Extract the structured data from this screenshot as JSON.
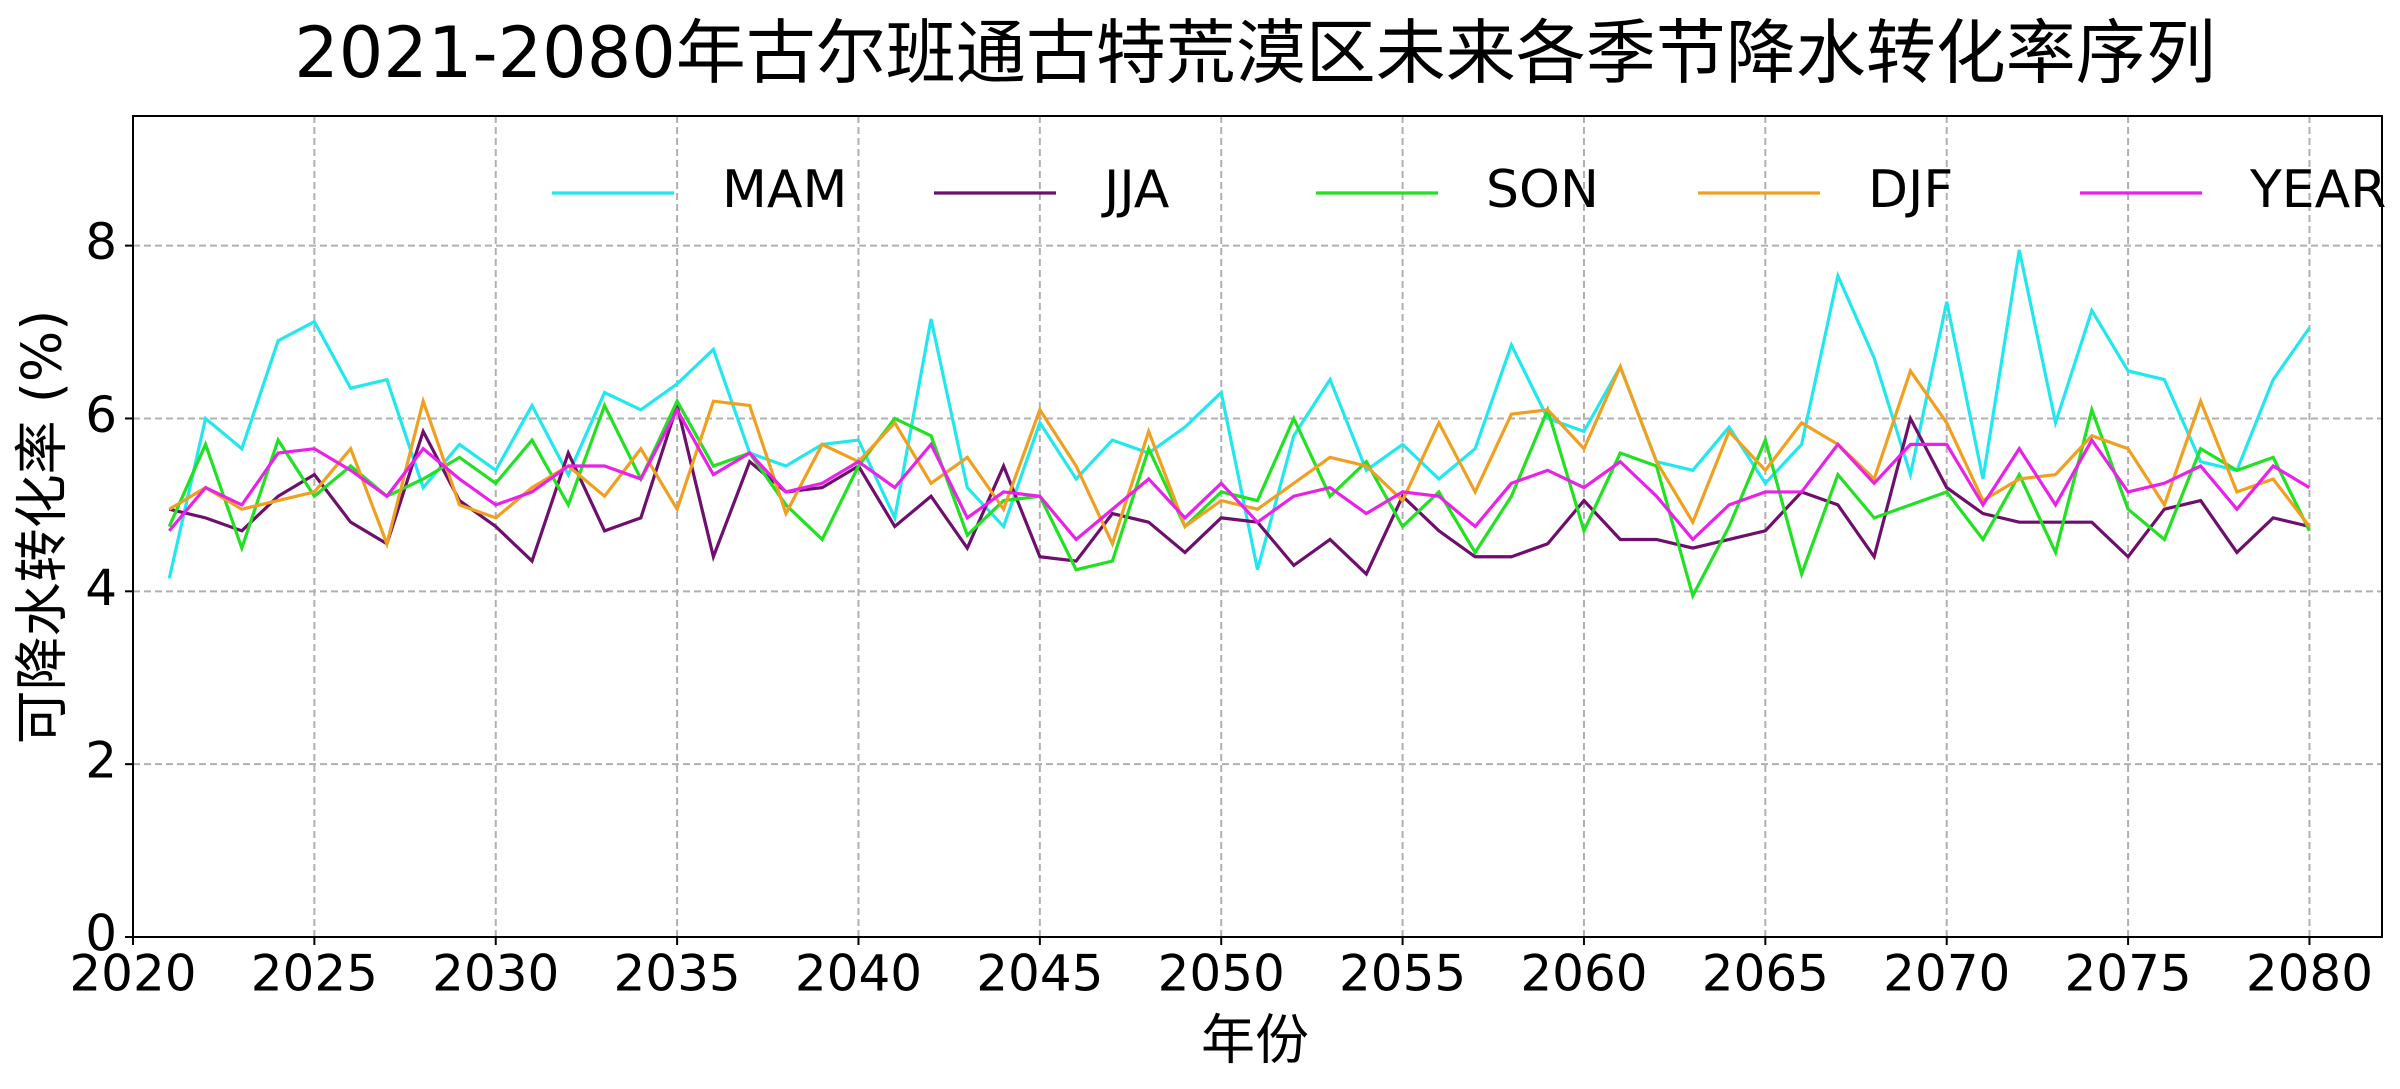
{
  "chart_data": {
    "type": "line",
    "title": "2021-2080年古尔班通古特荒漠区未来各季节降水转化率序列",
    "x_label": "年份",
    "y_label": "可降水转化率 (%)",
    "x": [
      2021,
      2022,
      2023,
      2024,
      2025,
      2026,
      2027,
      2028,
      2029,
      2030,
      2031,
      2032,
      2033,
      2034,
      2035,
      2036,
      2037,
      2038,
      2039,
      2040,
      2041,
      2042,
      2043,
      2044,
      2045,
      2046,
      2047,
      2048,
      2049,
      2050,
      2051,
      2052,
      2053,
      2054,
      2055,
      2056,
      2057,
      2058,
      2059,
      2060,
      2061,
      2062,
      2063,
      2064,
      2065,
      2066,
      2067,
      2068,
      2069,
      2070,
      2071,
      2072,
      2073,
      2074,
      2075,
      2076,
      2077,
      2078,
      2079,
      2080
    ],
    "series": [
      {
        "name": "MAM",
        "color": "#22e8ee",
        "values": [
          4.15,
          6.0,
          5.65,
          6.9,
          7.12,
          6.35,
          6.45,
          5.2,
          5.7,
          5.4,
          6.15,
          5.35,
          6.3,
          6.1,
          6.4,
          6.8,
          5.6,
          5.45,
          5.7,
          5.75,
          4.85,
          7.15,
          5.2,
          4.75,
          5.95,
          5.3,
          5.75,
          5.6,
          5.9,
          6.3,
          4.25,
          5.8,
          6.45,
          5.4,
          5.7,
          5.3,
          5.65,
          6.85,
          6.0,
          5.85,
          6.6,
          5.5,
          5.4,
          5.9,
          5.25,
          5.7,
          7.65,
          6.7,
          5.35,
          7.35,
          5.3,
          7.95,
          5.95,
          7.25,
          6.55,
          6.45,
          5.5,
          5.4,
          6.45,
          7.05
        ]
      },
      {
        "name": "JJA",
        "color": "#6e0f6e",
        "values": [
          4.95,
          4.85,
          4.7,
          5.1,
          5.35,
          4.8,
          4.55,
          5.85,
          5.05,
          4.75,
          4.35,
          5.6,
          4.7,
          4.85,
          6.15,
          4.4,
          5.5,
          5.15,
          5.2,
          5.45,
          4.75,
          5.1,
          4.5,
          5.45,
          4.4,
          4.35,
          4.9,
          4.8,
          4.45,
          4.85,
          4.8,
          4.3,
          4.6,
          4.2,
          5.1,
          4.7,
          4.4,
          4.4,
          4.55,
          5.05,
          4.6,
          4.6,
          4.5,
          4.6,
          4.7,
          5.15,
          5.0,
          4.4,
          6.0,
          5.2,
          4.9,
          4.8,
          4.8,
          4.8,
          4.4,
          4.95,
          5.05,
          4.45,
          4.85,
          4.75
        ]
      },
      {
        "name": "SON",
        "color": "#22e022",
        "values": [
          4.75,
          5.7,
          4.5,
          5.75,
          5.1,
          5.45,
          5.1,
          5.3,
          5.55,
          5.25,
          5.75,
          5.0,
          6.15,
          5.3,
          6.2,
          5.45,
          5.6,
          5.0,
          4.6,
          5.45,
          6.0,
          5.8,
          4.65,
          5.05,
          5.1,
          4.25,
          4.35,
          5.65,
          4.75,
          5.15,
          5.05,
          6.0,
          5.1,
          5.5,
          4.75,
          5.15,
          4.45,
          5.1,
          6.1,
          4.7,
          5.6,
          5.45,
          3.95,
          4.75,
          5.75,
          4.2,
          5.35,
          4.85,
          5.0,
          5.15,
          4.6,
          5.35,
          4.45,
          6.1,
          4.95,
          4.6,
          5.65,
          5.4,
          5.55,
          4.7
        ]
      },
      {
        "name": "DJF",
        "color": "#f0a020",
        "values": [
          4.95,
          5.2,
          4.95,
          5.05,
          5.15,
          5.65,
          4.55,
          6.2,
          5.0,
          4.85,
          5.2,
          5.45,
          5.1,
          5.65,
          4.95,
          6.2,
          6.15,
          4.9,
          5.7,
          5.5,
          5.95,
          5.25,
          5.55,
          4.95,
          6.1,
          5.45,
          4.55,
          5.85,
          4.75,
          5.05,
          4.95,
          5.25,
          5.55,
          5.45,
          5.05,
          5.95,
          5.15,
          6.05,
          6.1,
          5.65,
          6.6,
          5.5,
          4.8,
          5.85,
          5.4,
          5.95,
          5.7,
          5.3,
          6.55,
          5.95,
          5.05,
          5.3,
          5.35,
          5.8,
          5.65,
          5.0,
          6.2,
          5.15,
          5.3,
          4.75
        ]
      },
      {
        "name": "YEAR",
        "color": "#e822e8",
        "values": [
          4.7,
          5.2,
          5.0,
          5.6,
          5.65,
          5.4,
          5.1,
          5.65,
          5.3,
          5.0,
          5.15,
          5.45,
          5.45,
          5.3,
          6.1,
          5.35,
          5.6,
          5.15,
          5.25,
          5.5,
          5.2,
          5.7,
          4.85,
          5.15,
          5.1,
          4.6,
          4.95,
          5.3,
          4.85,
          5.25,
          4.8,
          5.1,
          5.2,
          4.9,
          5.15,
          5.1,
          4.75,
          5.25,
          5.4,
          5.2,
          5.5,
          5.1,
          4.6,
          5.0,
          5.15,
          5.15,
          5.7,
          5.25,
          5.7,
          5.7,
          5.0,
          5.65,
          5.0,
          5.75,
          5.15,
          5.25,
          5.45,
          4.95,
          5.45,
          5.2
        ]
      }
    ],
    "xlim": [
      2020,
      2082
    ],
    "xticks": [
      2020,
      2025,
      2030,
      2035,
      2040,
      2045,
      2050,
      2055,
      2060,
      2065,
      2070,
      2075,
      2080
    ],
    "ylim": [
      0,
      9.5
    ],
    "yticks": [
      0,
      2,
      4,
      6,
      8
    ],
    "grid": true,
    "legend_loc": "upper right"
  }
}
